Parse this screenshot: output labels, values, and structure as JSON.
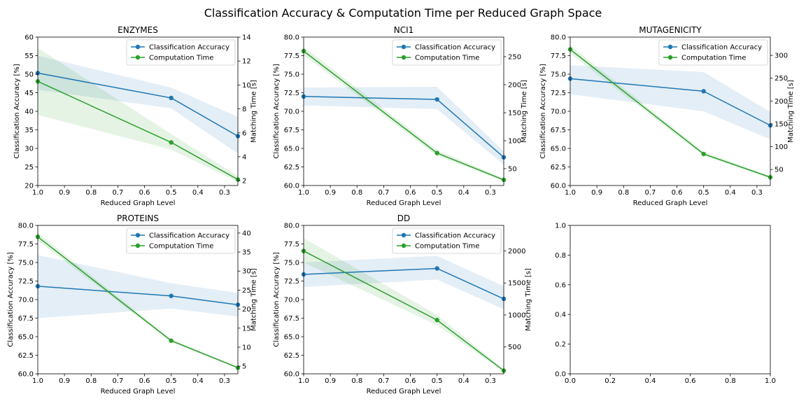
{
  "figure": {
    "title": "Classification Accuracy & Computation Time per Reduced Graph Space"
  },
  "chart_data": [
    {
      "type": "line",
      "title": "ENZYMES",
      "xlabel": "Reduced Graph Level",
      "ylabel": "Classification Accuracy [%]",
      "y2label": "Matching Time [s]",
      "x": [
        1.0,
        0.5,
        0.25
      ],
      "xlim": [
        1.0,
        0.25
      ],
      "xticks": [
        1.0,
        0.9,
        0.8,
        0.7,
        0.6,
        0.5,
        0.4,
        0.3
      ],
      "ylim": [
        20,
        60
      ],
      "yticks": [
        20,
        25,
        30,
        35,
        40,
        45,
        50,
        55,
        60
      ],
      "y2lim": [
        1.6,
        14
      ],
      "y2ticks": [
        2,
        4,
        6,
        8,
        10,
        12,
        14
      ],
      "legend_position": "upper right",
      "series": [
        {
          "name": "Classification Accuracy",
          "axis": "left",
          "color": "#1f77b4",
          "values": [
            50.3,
            43.6,
            33.3
          ],
          "lower": [
            45.8,
            40.8,
            28.6
          ],
          "upper": [
            55.0,
            46.4,
            38.5
          ]
        },
        {
          "name": "Computation Time",
          "axis": "right",
          "color": "#2ca02c",
          "values": [
            10.3,
            5.2,
            2.1
          ],
          "lower": [
            7.5,
            4.6,
            1.9
          ],
          "upper": [
            13.1,
            5.9,
            2.4
          ]
        }
      ]
    },
    {
      "type": "line",
      "title": "NCI1",
      "xlabel": "Reduced Graph Level",
      "ylabel": "Classification Accuracy [%]",
      "y2label": "Matching Time [s]",
      "x": [
        1.0,
        0.5,
        0.25
      ],
      "xlim": [
        1.0,
        0.25
      ],
      "xticks": [
        1.0,
        0.9,
        0.8,
        0.7,
        0.6,
        0.5,
        0.4,
        0.3
      ],
      "ylim": [
        60,
        80
      ],
      "yticks": [
        60.0,
        62.5,
        65.0,
        67.5,
        70.0,
        72.5,
        75.0,
        77.5,
        80.0
      ],
      "y2lim": [
        20,
        285
      ],
      "y2ticks": [
        50,
        100,
        150,
        200,
        250
      ],
      "legend_position": "upper right",
      "series": [
        {
          "name": "Classification Accuracy",
          "axis": "left",
          "color": "#1f77b4",
          "values": [
            72.0,
            71.6,
            63.8
          ],
          "lower": [
            70.8,
            70.3,
            62.8
          ],
          "upper": [
            73.2,
            73.3,
            64.6
          ]
        },
        {
          "name": "Computation Time",
          "axis": "right",
          "color": "#2ca02c",
          "values": [
            260,
            78,
            30
          ],
          "lower": [
            253,
            73,
            28
          ],
          "upper": [
            268,
            83,
            33
          ]
        }
      ]
    },
    {
      "type": "line",
      "title": "MUTAGENICITY",
      "xlabel": "Reduced Graph Level",
      "ylabel": "Classification Accuracy [%]",
      "y2label": "Matching Time [s]",
      "x": [
        1.0,
        0.5,
        0.25
      ],
      "xlim": [
        1.0,
        0.25
      ],
      "xticks": [
        1.0,
        0.9,
        0.8,
        0.7,
        0.6,
        0.5,
        0.4,
        0.3
      ],
      "ylim": [
        60,
        80
      ],
      "yticks": [
        60.0,
        62.5,
        65.0,
        67.5,
        70.0,
        72.5,
        75.0,
        77.5,
        80.0
      ],
      "y2lim": [
        15,
        340
      ],
      "y2ticks": [
        50,
        100,
        150,
        200,
        250,
        300
      ],
      "legend_position": "upper right",
      "series": [
        {
          "name": "Classification Accuracy",
          "axis": "left",
          "color": "#1f77b4",
          "values": [
            74.4,
            72.7,
            68.1
          ],
          "lower": [
            72.3,
            70.0,
            66.2
          ],
          "upper": [
            76.2,
            75.3,
            69.9
          ]
        },
        {
          "name": "Computation Time",
          "axis": "right",
          "color": "#2ca02c",
          "values": [
            313,
            84,
            33
          ],
          "lower": [
            304,
            80,
            31
          ],
          "upper": [
            322,
            89,
            36
          ]
        }
      ]
    },
    {
      "type": "line",
      "title": "PROTEINS",
      "xlabel": "Reduced Graph Level",
      "ylabel": "Classification Accuracy [%]",
      "y2label": "Matching Time [s]",
      "x": [
        1.0,
        0.5,
        0.25
      ],
      "xlim": [
        1.0,
        0.25
      ],
      "xticks": [
        1.0,
        0.9,
        0.8,
        0.7,
        0.6,
        0.5,
        0.4,
        0.3
      ],
      "ylim": [
        60,
        80
      ],
      "yticks": [
        60.0,
        62.5,
        65.0,
        67.5,
        70.0,
        72.5,
        75.0,
        77.5,
        80.0
      ],
      "y2lim": [
        3,
        42
      ],
      "y2ticks": [
        5,
        10,
        15,
        20,
        25,
        30,
        35,
        40
      ],
      "legend_position": "upper right",
      "series": [
        {
          "name": "Classification Accuracy",
          "axis": "left",
          "color": "#1f77b4",
          "values": [
            71.8,
            70.5,
            69.3
          ],
          "lower": [
            67.5,
            68.8,
            67.7
          ],
          "upper": [
            76.0,
            72.2,
            70.9
          ]
        },
        {
          "name": "Computation Time",
          "axis": "right",
          "color": "#2ca02c",
          "values": [
            39.0,
            11.7,
            4.6
          ],
          "lower": [
            38.0,
            11.3,
            4.4
          ],
          "upper": [
            40.0,
            12.1,
            4.9
          ]
        }
      ]
    },
    {
      "type": "line",
      "title": "DD",
      "xlabel": "Reduced Graph Level",
      "ylabel": "Classification Accuracy [%]",
      "y2label": "Matching Time [s]",
      "x": [
        1.0,
        0.5,
        0.25
      ],
      "xlim": [
        1.0,
        0.25
      ],
      "xticks": [
        1.0,
        0.9,
        0.8,
        0.7,
        0.6,
        0.5,
        0.4,
        0.3
      ],
      "ylim": [
        60,
        80
      ],
      "yticks": [
        60.0,
        62.5,
        65.0,
        67.5,
        70.0,
        72.5,
        75.0,
        77.5,
        80.0
      ],
      "y2lim": [
        80,
        2400
      ],
      "y2ticks": [
        500,
        1000,
        1500,
        2000
      ],
      "legend_position": "upper right",
      "series": [
        {
          "name": "Classification Accuracy",
          "axis": "left",
          "color": "#1f77b4",
          "values": [
            73.4,
            74.2,
            70.1
          ],
          "lower": [
            71.7,
            72.7,
            68.7
          ],
          "upper": [
            75.0,
            75.9,
            71.8
          ]
        },
        {
          "name": "Computation Time",
          "axis": "right",
          "color": "#2ca02c",
          "values": [
            2000,
            920,
            130
          ],
          "lower": [
            1820,
            840,
            110
          ],
          "upper": [
            2200,
            1000,
            150
          ]
        }
      ]
    },
    {
      "type": "line",
      "title": "",
      "xlabel": "",
      "ylabel": "",
      "xlim": [
        0.0,
        1.0
      ],
      "xticks": [
        0.0,
        0.2,
        0.4,
        0.6,
        0.8,
        1.0
      ],
      "ylim": [
        0.0,
        1.0
      ],
      "yticks": [
        0.0,
        0.2,
        0.4,
        0.6,
        0.8,
        1.0
      ],
      "series": []
    }
  ]
}
